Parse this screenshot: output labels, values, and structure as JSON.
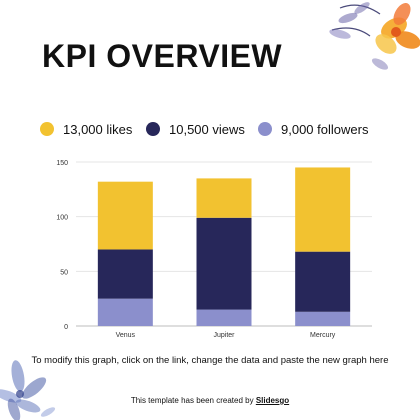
{
  "slide": {
    "title": "KPI OVERVIEW",
    "footnote": "To modify this graph, click on the link, change the data and paste the new graph here",
    "credit_prefix": "This template has been created by",
    "credit_link": "Slidesgo"
  },
  "legend": [
    {
      "label": "13,000 likes",
      "color": "#f2c230"
    },
    {
      "label": "10,500 views",
      "color": "#27275a"
    },
    {
      "label": "9,000 followers",
      "color": "#8b8fcc"
    }
  ],
  "chart_data": {
    "type": "bar",
    "stacked": true,
    "categories": [
      "Venus",
      "Jupiter",
      "Mercury"
    ],
    "series": [
      {
        "values": [
          25,
          15,
          13
        ],
        "color": "#8b8fcc"
      },
      {
        "values": [
          45,
          84,
          55
        ],
        "color": "#27275a"
      },
      {
        "values": [
          62,
          36,
          77
        ],
        "color": "#f2c230"
      }
    ],
    "ylim": [
      0,
      150
    ],
    "yticks": [
      0,
      50,
      100,
      150
    ],
    "grid": true
  },
  "decor": {
    "flower_top_right": "flower-icon",
    "flower_bottom_left": "flower-icon"
  }
}
